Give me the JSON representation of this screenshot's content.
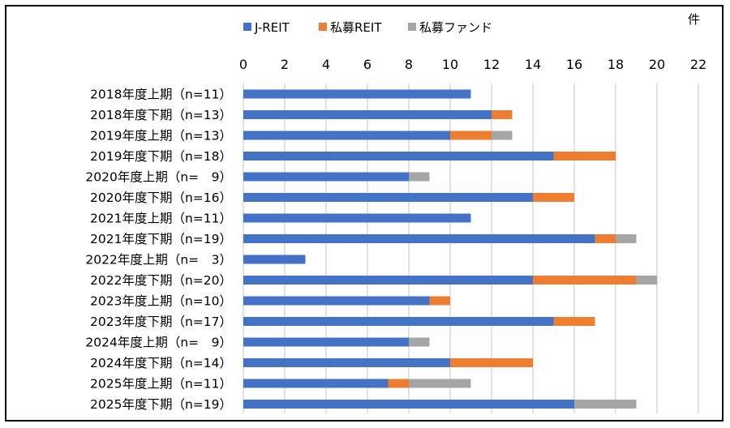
{
  "chart_data": {
    "type": "bar",
    "orientation": "horizontal",
    "stacked": true,
    "unit_label": "件",
    "categories": [
      "2018年度上期（n=11）",
      "2018年度下期（n=13）",
      "2019年度上期（n=13）",
      "2019年度下期（n=18）",
      "2020年度上期（n=　9）",
      "2020年度下期（n=16）",
      "2021年度上期（n=11）",
      "2021年度下期（n=19）",
      "2022年度上期（n=　3）",
      "2022年度下期（n=20）",
      "2023年度上期（n=10）",
      "2023年度下期（n=17）",
      "2024年度上期（n=　9）",
      "2024年度下期（n=14）",
      "2025年度上期（n=11）",
      "2025年度下期（n=19）"
    ],
    "series": [
      {
        "name": "J-REIT",
        "color": "#4472C4",
        "values": [
          11,
          12,
          10,
          15,
          8,
          14,
          11,
          17,
          3,
          14,
          9,
          15,
          8,
          10,
          7,
          16
        ]
      },
      {
        "name": "私募REIT",
        "color": "#ED7D31",
        "values": [
          0,
          1,
          2,
          3,
          0,
          2,
          0,
          1,
          0,
          5,
          1,
          2,
          0,
          4,
          1,
          0
        ]
      },
      {
        "name": "私募ファンド",
        "color": "#A5A5A5",
        "values": [
          0,
          0,
          1,
          0,
          1,
          0,
          0,
          1,
          0,
          1,
          0,
          0,
          1,
          0,
          3,
          3
        ]
      }
    ],
    "xlim": [
      0,
      22
    ],
    "xticks": [
      0,
      2,
      4,
      6,
      8,
      10,
      12,
      14,
      16,
      18,
      20,
      22
    ],
    "grid": true,
    "legend_position": "top"
  }
}
